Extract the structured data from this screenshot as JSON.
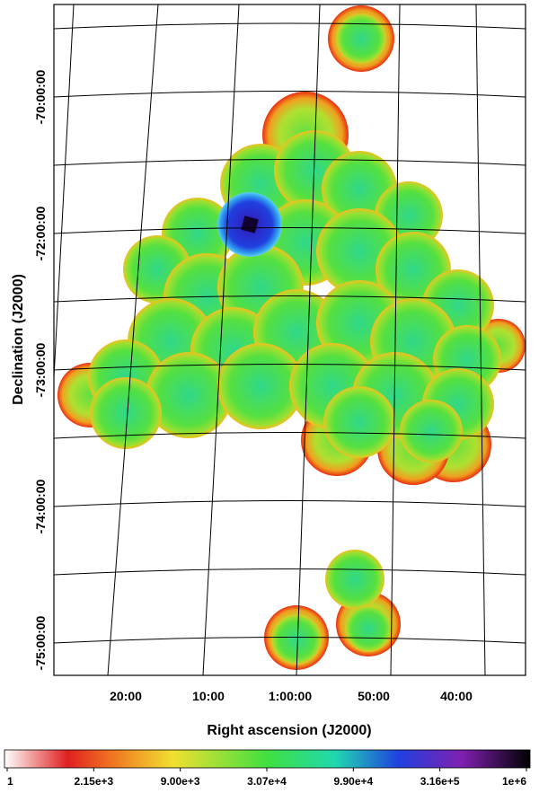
{
  "chart_data": {
    "type": "image",
    "xlabel": "Right ascension (J2000)",
    "ylabel": "Declination (J2000)",
    "xticks": [
      {
        "value": 80,
        "label": "20:00"
      },
      {
        "value": 70,
        "label": "10:00"
      },
      {
        "value": 60,
        "label": "1:00:00"
      },
      {
        "value": 50,
        "label": "50:00"
      },
      {
        "value": 40,
        "label": "40:00"
      }
    ],
    "yticks": [
      {
        "value": -70,
        "label": "-70:00:00"
      },
      {
        "value": -72,
        "label": "-72:00:00"
      },
      {
        "value": -73,
        "label": "-73:00:00"
      },
      {
        "value": -74,
        "label": "-74:00:00"
      },
      {
        "value": -75,
        "label": "-75:00:00"
      }
    ],
    "colorbar": [
      {
        "value": 1,
        "label": "1"
      },
      {
        "value": 2150,
        "label": "2.15e+3"
      },
      {
        "value": 9000,
        "label": "9.00e+3"
      },
      {
        "value": 30700,
        "label": "3.07e+4"
      },
      {
        "value": 99000,
        "label": "9.90e+4"
      },
      {
        "value": 316000,
        "label": "3.16e+5"
      },
      {
        "value": 1000000,
        "label": "1e+6"
      }
    ]
  }
}
